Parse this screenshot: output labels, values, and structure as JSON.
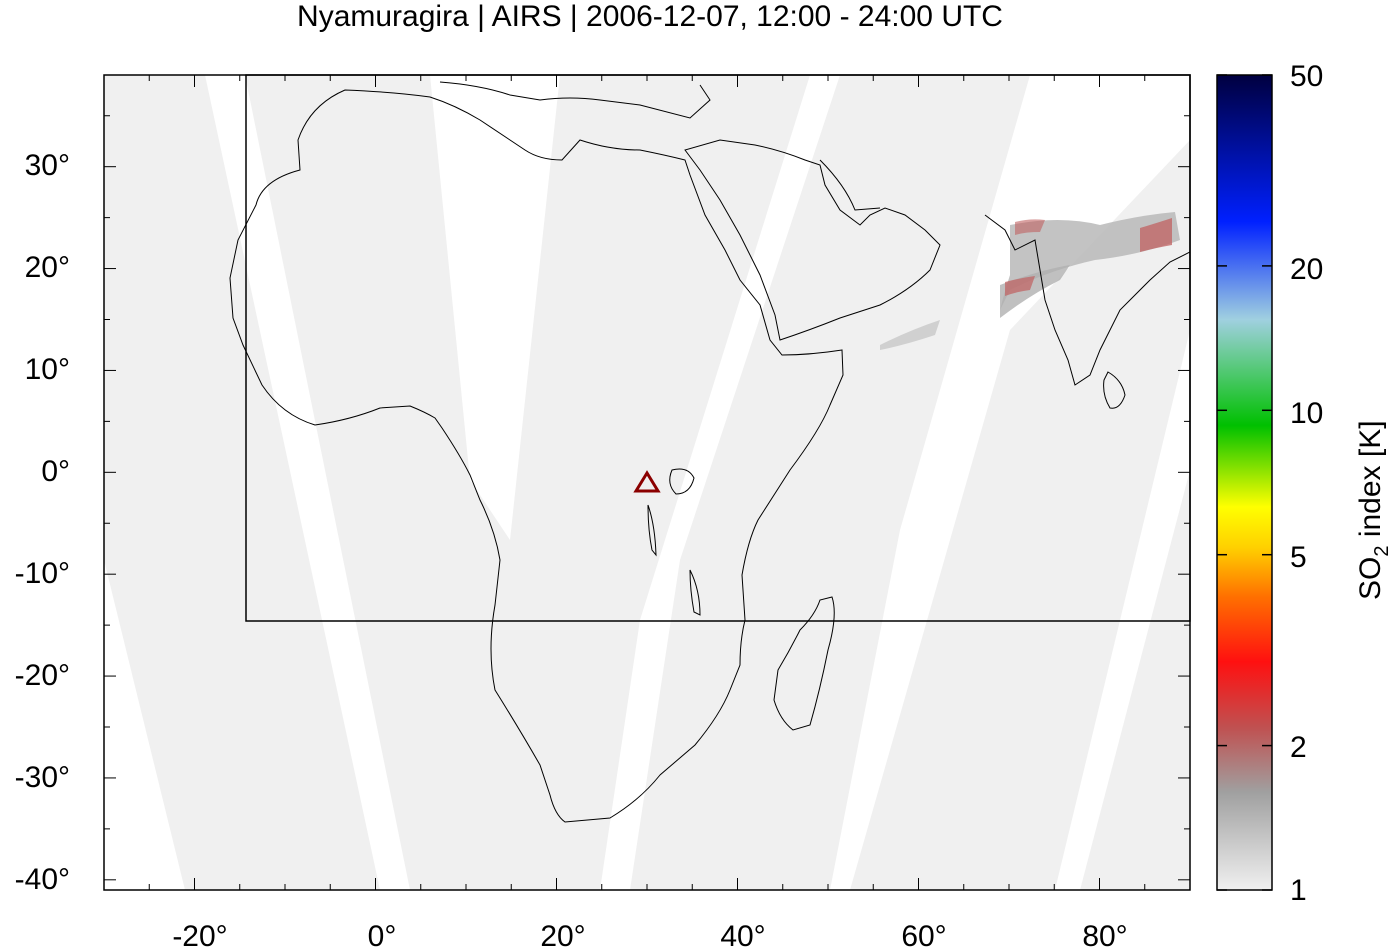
{
  "title": "Nyamuragira | AIRS | 2006-12-07, 12:00 - 24:00 UTC",
  "map": {
    "lon_range": [
      -30,
      90
    ],
    "lat_range": [
      -41,
      39
    ],
    "x_ticks": [
      "-20°",
      "0°",
      "20°",
      "40°",
      "60°",
      "80°"
    ],
    "y_ticks": [
      "30°",
      "20°",
      "10°",
      "0°",
      "-10°",
      "-20°",
      "-30°",
      "-40°"
    ],
    "volcano": {
      "name": "Nyamuragira",
      "lon": 29.2,
      "lat": -1.4,
      "marker": "triangle",
      "color": "#8b0000"
    },
    "region_box": {
      "lon_min": -15,
      "lat_min": -15,
      "lon_max": 90,
      "lat_max": 39
    }
  },
  "colorbar": {
    "label_main": "SO",
    "label_sub": "2",
    "label_rest": " index [K]",
    "scale": "log",
    "ticks": [
      "50",
      "20",
      "10",
      "5",
      "2",
      "1"
    ],
    "tick_values": [
      50,
      20,
      10,
      5,
      2,
      1
    ],
    "colors": [
      "#f0f0f0",
      "#a0a0a0",
      "#c05050",
      "#ff0000",
      "#ff8000",
      "#ffff00",
      "#00c000",
      "#a0d0e0",
      "#0000ff",
      "#000040"
    ]
  }
}
